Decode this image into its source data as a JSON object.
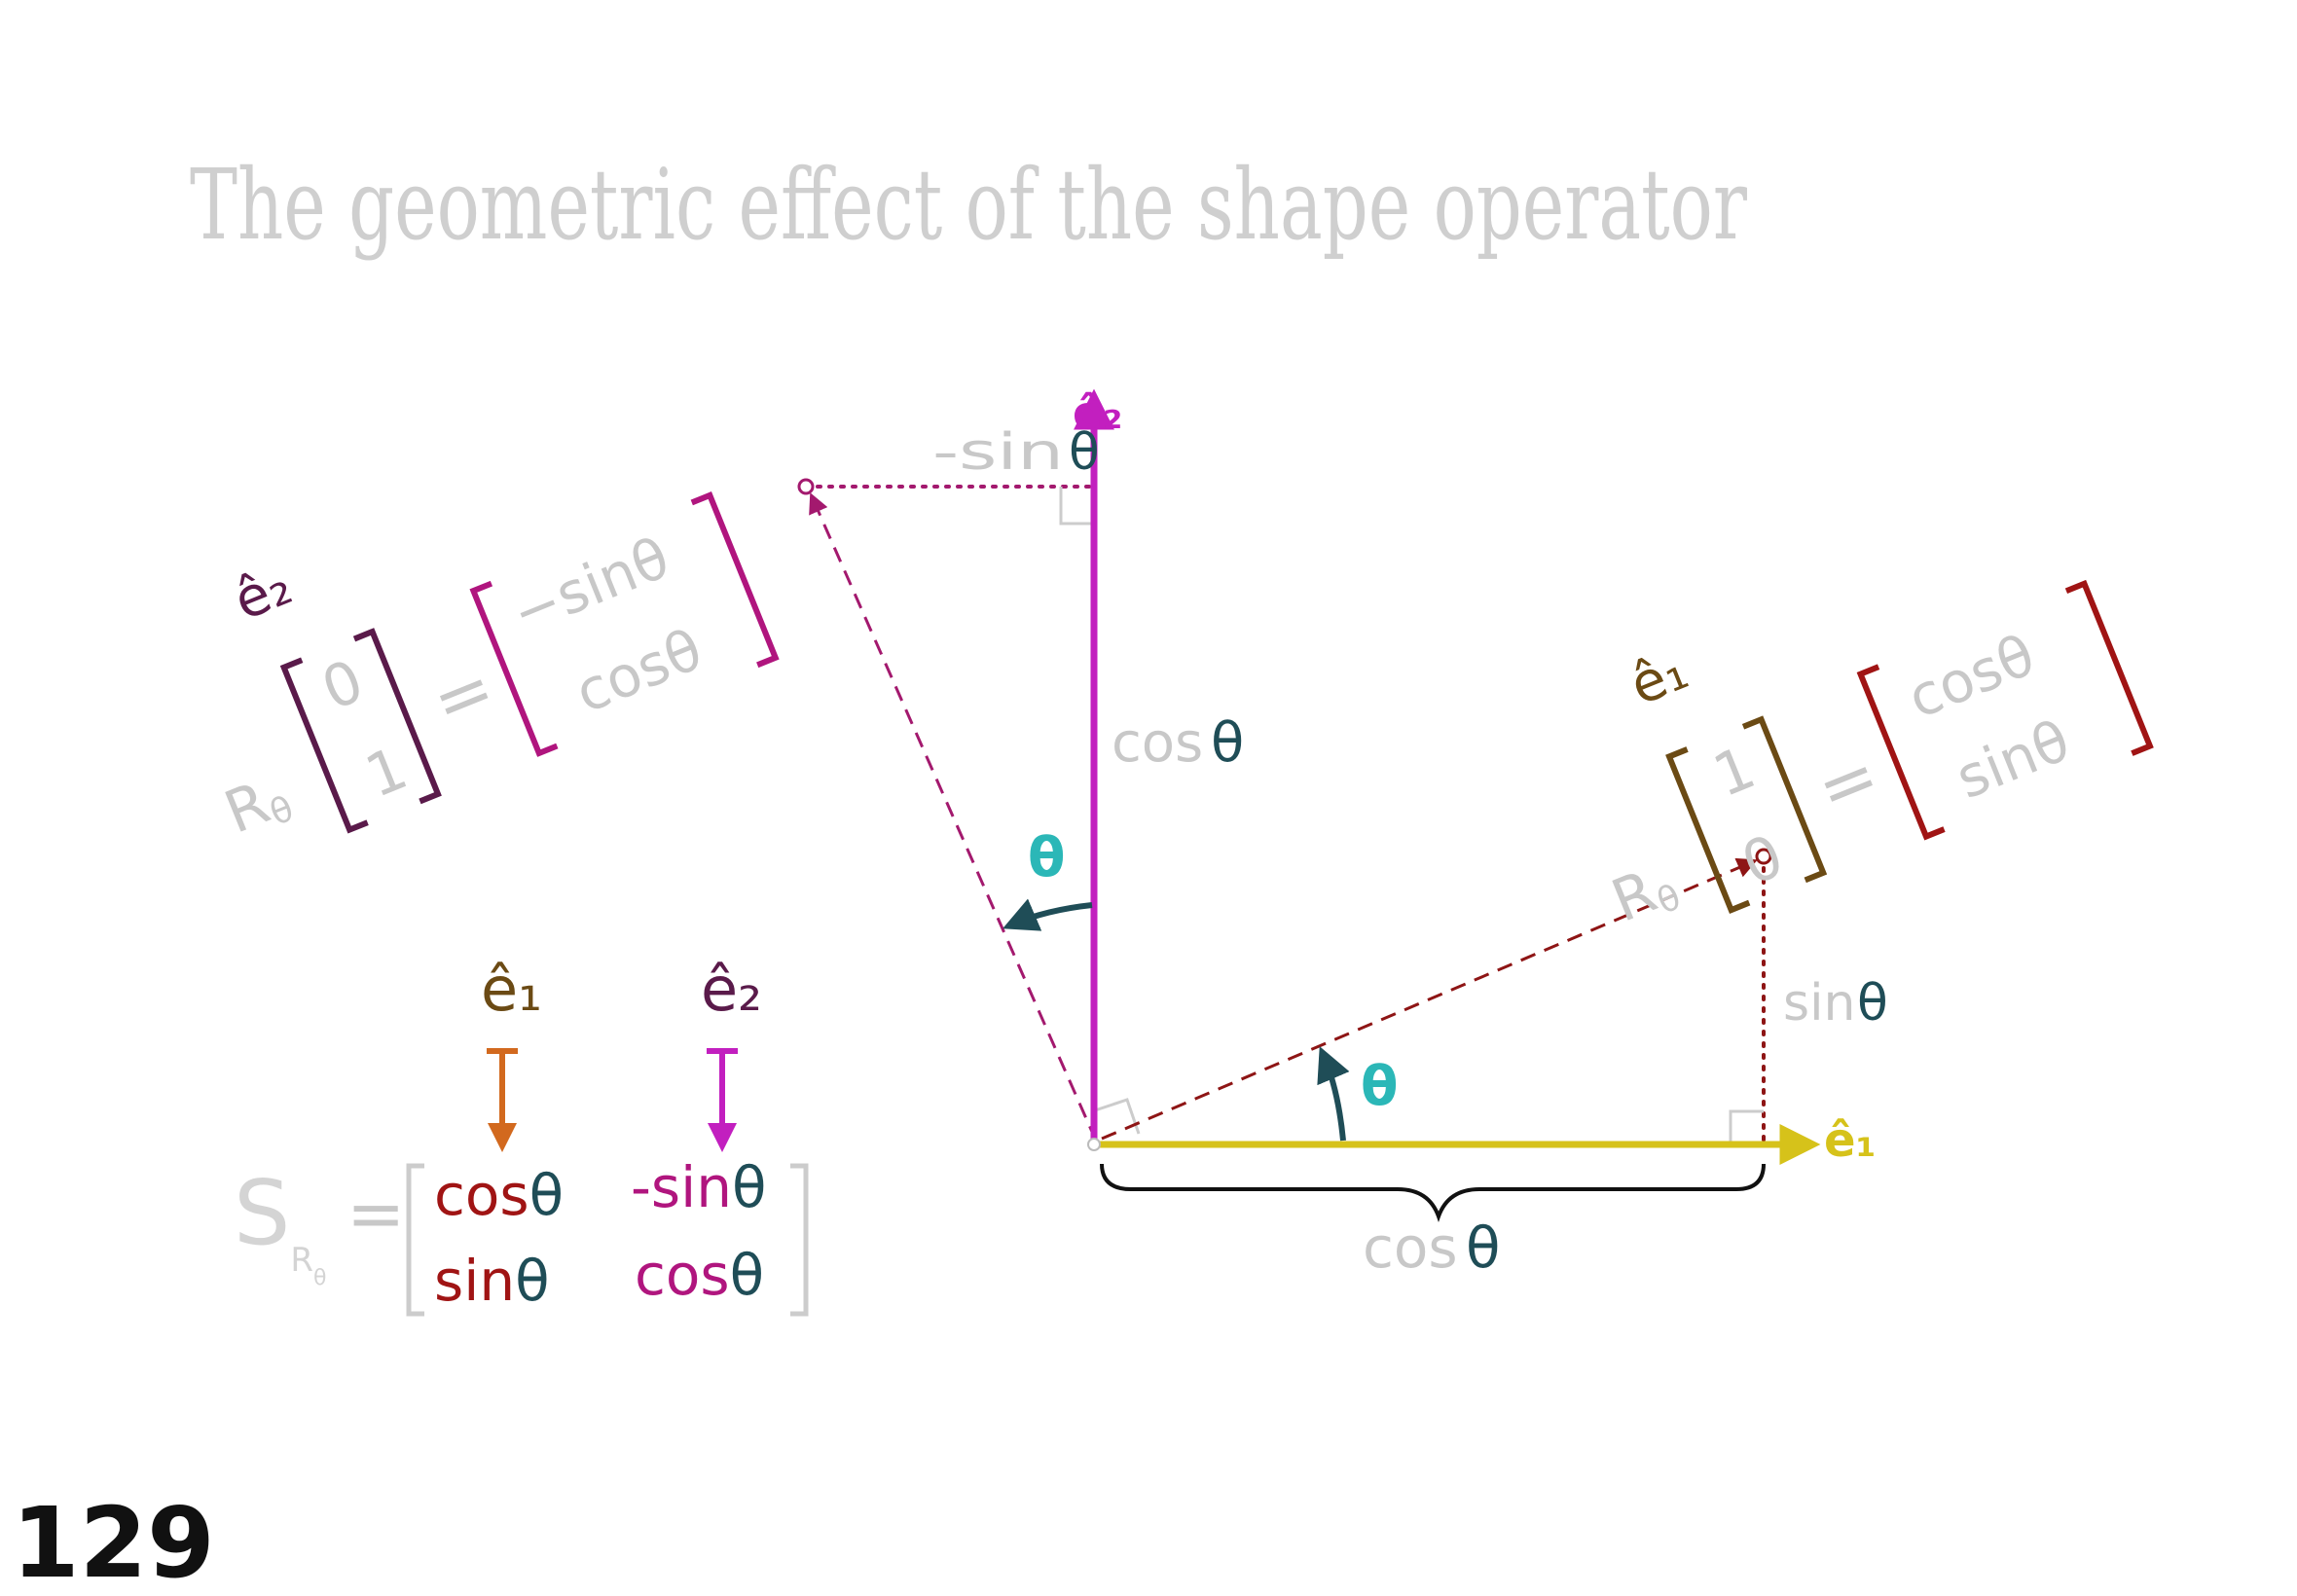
{
  "title": "The geometric effect of the shape operator",
  "page_number": "129",
  "colors": {
    "e1_axis": "#d6c21a",
    "e2_axis": "#c21fbf",
    "rotated_e1": "#8e1515",
    "rotated_e2": "#a3196e",
    "theta": "#2bb7b7",
    "trig_text": "#1f4d57",
    "light_label": "#c8c8c8",
    "e1_symbol_brown": "#6b4a14",
    "e2_symbol_purple": "#5a1a4a",
    "arrow_orange": "#d2691e",
    "arrow_magenta": "#c21fbf",
    "matrix_red": "#a01414",
    "matrix_magenta": "#b0157e"
  },
  "diagram": {
    "axis_e1_label": "ê₁",
    "axis_e2_label": "ê₂",
    "top_projection": {
      "prefix": "-sin",
      "symbol": "θ"
    },
    "vertical_projection": {
      "prefix": "cos",
      "symbol": "θ"
    },
    "right_projection": {
      "prefix": "sin",
      "symbol": "θ"
    },
    "bottom_brace": {
      "prefix": "cos",
      "symbol": "θ"
    },
    "angle_upper": "θ",
    "angle_lower": "θ"
  },
  "left_equation": {
    "vector_symbol": "ê₂",
    "operator": "R",
    "operator_sub": "θ",
    "input_top": "0",
    "input_bottom": "1",
    "equals": "=",
    "output_top": "−sinθ",
    "output_bottom": "cosθ"
  },
  "right_equation": {
    "vector_symbol": "ê₁",
    "operator": "R",
    "operator_sub": "θ",
    "input_top": "1",
    "input_bottom": "0",
    "equals": "=",
    "output_top": "cosθ",
    "output_bottom": "sinθ"
  },
  "shape_matrix": {
    "col1_symbol": "ê₁",
    "col2_symbol": "ê₂",
    "name": "S",
    "name_sub": "R",
    "name_subsub": "θ",
    "equals": "=",
    "r1c1_prefix": "cos",
    "r1c1_theta": "θ",
    "r1c2_prefix": "-sin",
    "r1c2_theta": "θ",
    "r2c1_prefix": "sin",
    "r2c1_theta": "θ",
    "r2c2_prefix": "cos",
    "r2c2_theta": "θ"
  }
}
